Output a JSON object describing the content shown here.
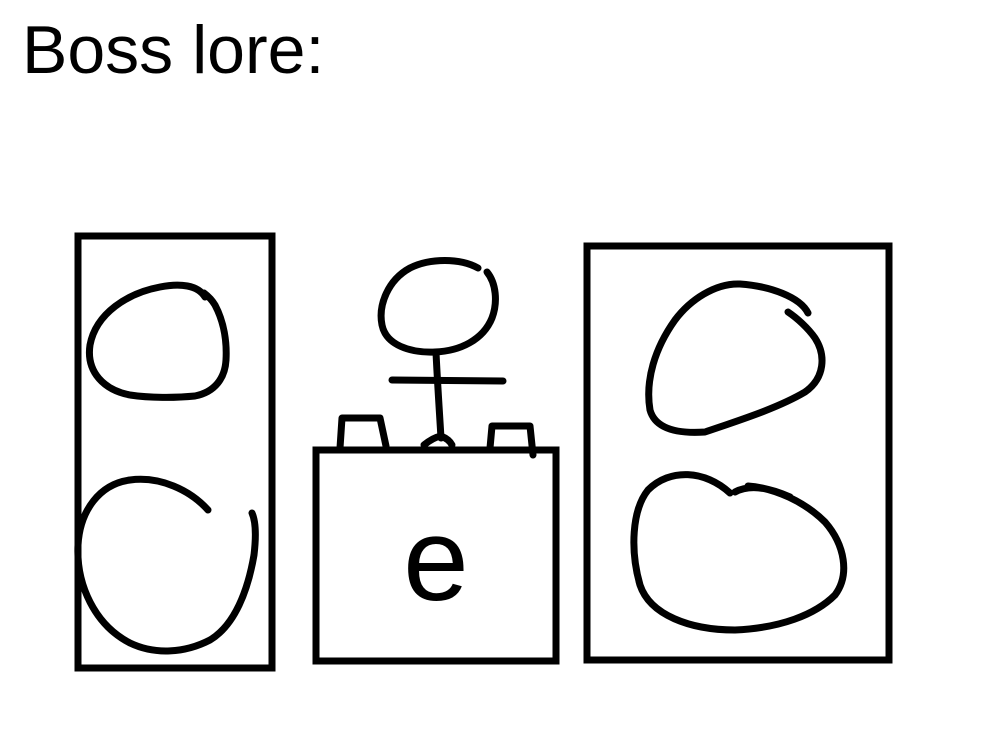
{
  "title": "Boss lore:",
  "center_box_letter": "e",
  "stroke_color": "#000000",
  "background_color": "#ffffff"
}
